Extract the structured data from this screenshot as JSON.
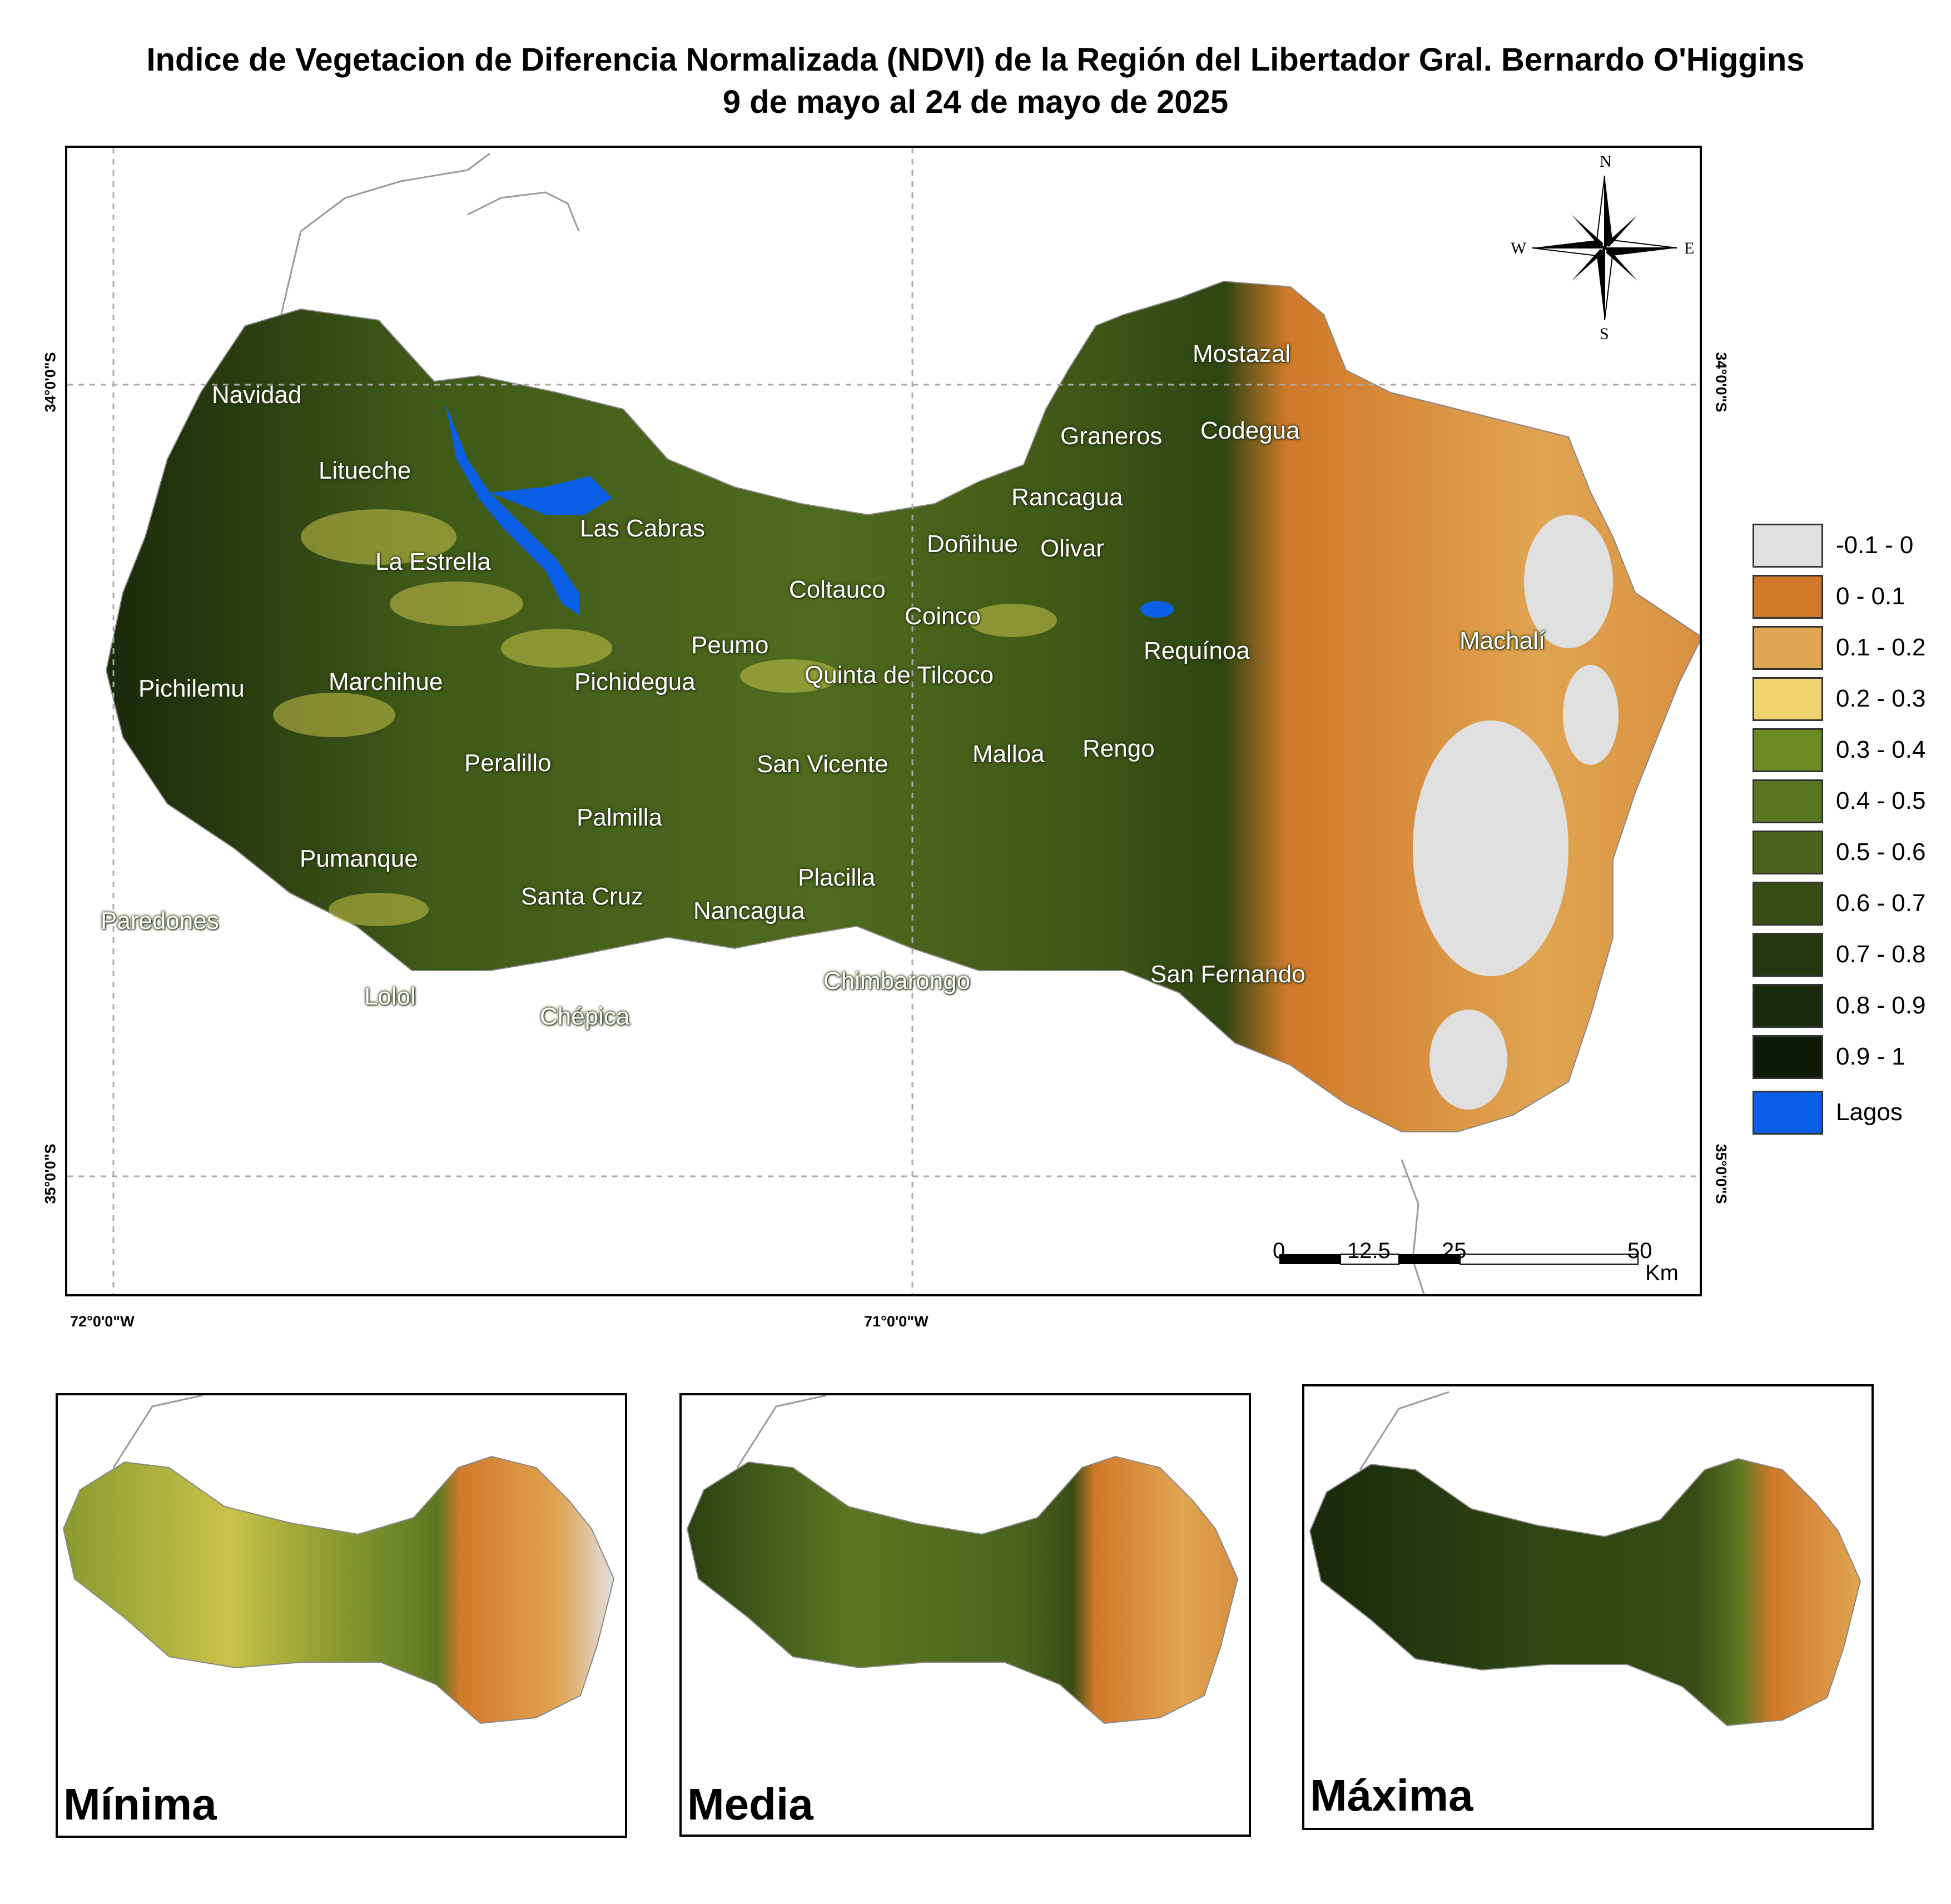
{
  "title": {
    "line1": "Indice de Vegetacion de Diferencia Normalizada (NDVI) de la Región del Libertador Gral. Bernardo O'Higgins",
    "line2": "9 de mayo al 24 de mayo de 2025"
  },
  "graticule": {
    "lat_top": "34°0'0\"S",
    "lat_bottom": "35°0'0\"S",
    "lon_left": "72°0'0\"W",
    "lon_right": "71°0'0\"W"
  },
  "compass": {
    "n": "N",
    "s": "S",
    "e": "E",
    "w": "W"
  },
  "scale_bar": {
    "ticks": [
      "0",
      "12.5",
      "25",
      "50"
    ],
    "unit": "Km"
  },
  "legend": [
    {
      "label": "-0.1 - 0",
      "color": "#e0e0e0"
    },
    {
      "label": "0 - 0.1",
      "color": "#d0792a"
    },
    {
      "label": "0.1 - 0.2",
      "color": "#e0a552"
    },
    {
      "label": "0.2 - 0.3",
      "color": "#efd470"
    },
    {
      "label": "0.3 - 0.4",
      "color": "#6d8a25"
    },
    {
      "label": "0.4 - 0.5",
      "color": "#587622"
    },
    {
      "label": "0.5 - 0.6",
      "color": "#4b641d"
    },
    {
      "label": "0.6 - 0.7",
      "color": "#374d15"
    },
    {
      "label": "0.7 - 0.8",
      "color": "#243710"
    },
    {
      "label": "0.8 - 0.9",
      "color": "#1a290b"
    },
    {
      "label": "0.9 - 1",
      "color": "#0f1a06"
    },
    {
      "label": "Lagos",
      "color": "#0b5fe6"
    }
  ],
  "places": {
    "navidad": "Navidad",
    "litueche": "Litueche",
    "la_estrella": "La Estrella",
    "las_cabras": "Las Cabras",
    "pichilemu": "Pichilemu",
    "marchihue": "Marchihue",
    "pichidegua": "Pichidegua",
    "peumo": "Peumo",
    "coltauco": "Coltauco",
    "coinco": "Coinco",
    "quinta_de_tilcoco": "Quinta de Tilcoco",
    "donihue": "Doñihue",
    "olivar": "Olivar",
    "rancagua": "Rancagua",
    "graneros": "Graneros",
    "codegua": "Codegua",
    "mostazal": "Mostazal",
    "requinoa": "Requínoa",
    "machali": "Machalí",
    "rengo": "Rengo",
    "malloa": "Malloa",
    "san_vicente": "San Vicente",
    "peralillo": "Peralillo",
    "palmilla": "Palmilla",
    "pumanque": "Pumanque",
    "paredones": "Paredones",
    "santa_cruz": "Santa Cruz",
    "nancagua": "Nancagua",
    "placilla": "Placilla",
    "chimbarongo": "Chimbarongo",
    "san_fernando": "San Fernando",
    "lolol": "Lolol",
    "chepica": "Chépica"
  },
  "insets": {
    "minima": "Mínima",
    "media": "Media",
    "maxima": "Máxima"
  }
}
